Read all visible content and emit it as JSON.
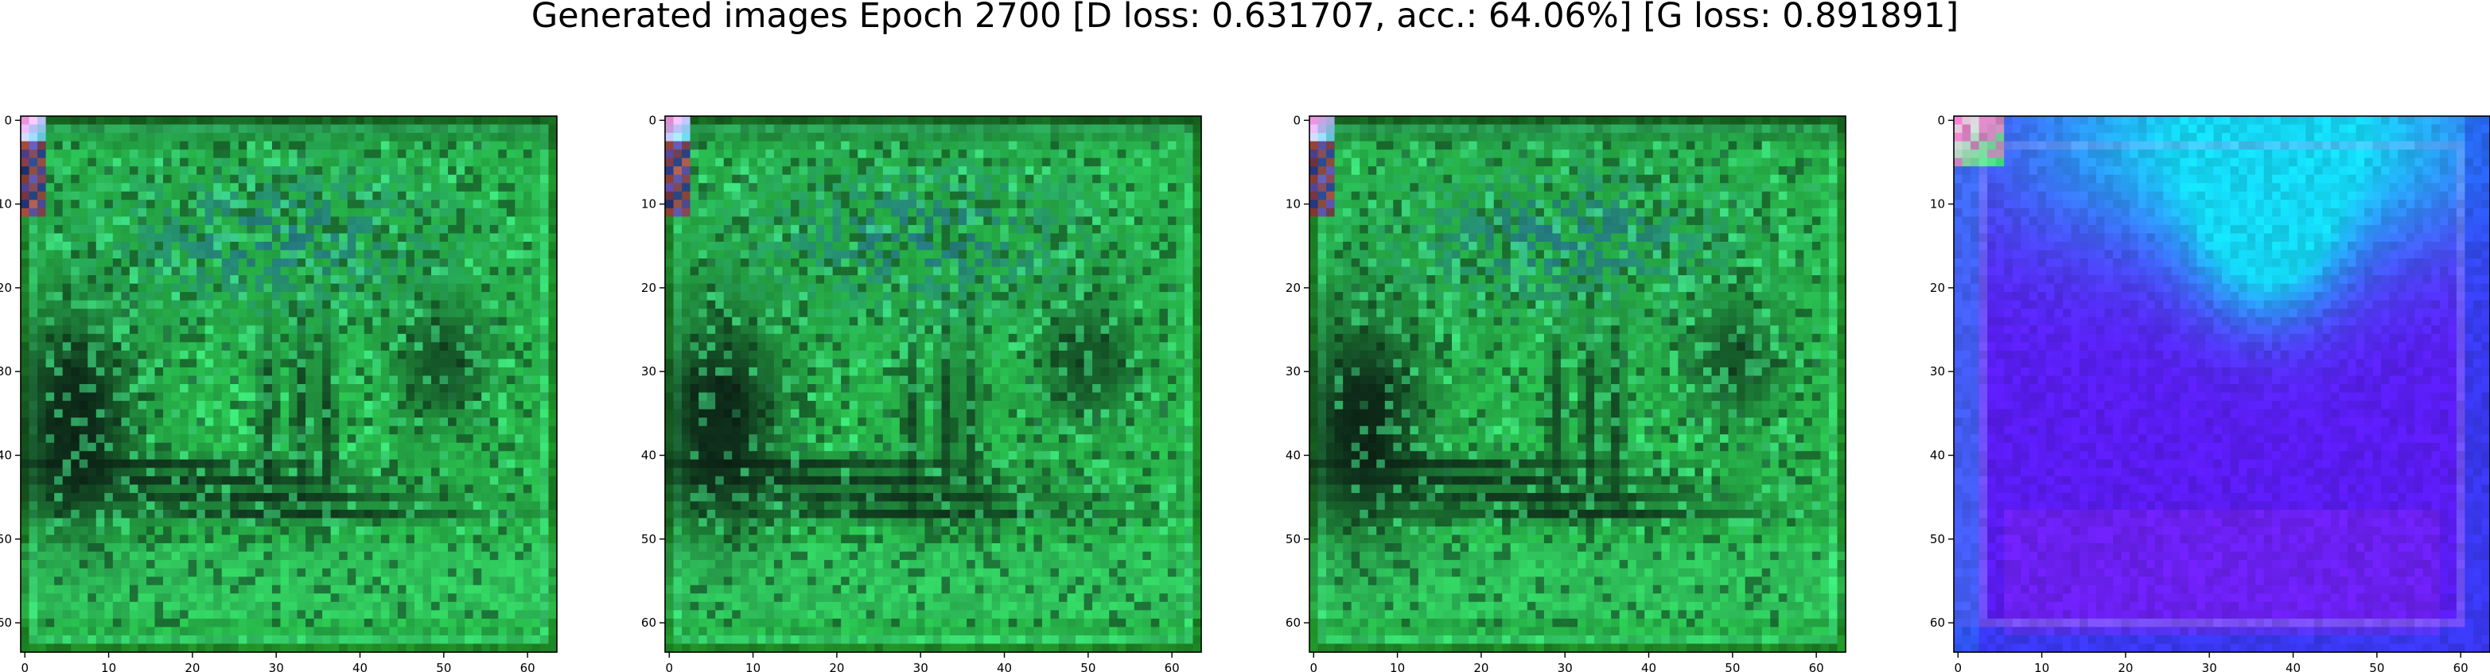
{
  "figure": {
    "title": "Generated images Epoch 2700 [D loss: 0.631707, acc.: 64.06%] [G loss: 0.891891]"
  },
  "chart_data": [
    {
      "type": "heatmap",
      "name": "image-1",
      "x_ticks": [
        "0",
        "10",
        "20",
        "30",
        "40",
        "50",
        "60"
      ],
      "y_ticks": [
        "0",
        "10",
        "20",
        "30",
        "40",
        "50",
        "60"
      ],
      "xlim": [
        -0.5,
        63.5
      ],
      "ylim": [
        63.5,
        -0.5
      ],
      "grid": false,
      "palette": {
        "border": "#1a7a1a",
        "base": "#27b34a",
        "dark": "#0b1f14",
        "light": "#44e88a",
        "blue": "#1e4d8c",
        "corner": "#ff9ff0"
      }
    },
    {
      "type": "heatmap",
      "name": "image-2",
      "x_ticks": [
        "0",
        "10",
        "20",
        "30",
        "40",
        "50",
        "60"
      ],
      "y_ticks": [
        "0",
        "10",
        "20",
        "30",
        "40",
        "50",
        "60"
      ],
      "xlim": [
        -0.5,
        63.5
      ],
      "ylim": [
        63.5,
        -0.5
      ],
      "grid": false,
      "palette": {
        "border": "#1a7a1a",
        "base": "#27b34a",
        "dark": "#0b1f14",
        "light": "#44e88a",
        "blue": "#1e4d8c",
        "corner": "#ff9ff0"
      }
    },
    {
      "type": "heatmap",
      "name": "image-3",
      "x_ticks": [
        "0",
        "10",
        "20",
        "30",
        "40",
        "50",
        "60"
      ],
      "y_ticks": [
        "0",
        "10",
        "20",
        "30",
        "40",
        "50",
        "60"
      ],
      "xlim": [
        -0.5,
        63.5
      ],
      "ylim": [
        63.5,
        -0.5
      ],
      "grid": false,
      "palette": {
        "border": "#1a7a1a",
        "base": "#27b34a",
        "dark": "#0b1f14",
        "light": "#44e88a",
        "blue": "#1e4d8c",
        "corner": "#ff9ff0"
      }
    },
    {
      "type": "heatmap",
      "name": "image-4",
      "x_ticks": [
        "0",
        "10",
        "20",
        "30",
        "40",
        "50",
        "60"
      ],
      "y_ticks": [
        "0",
        "10",
        "20",
        "30",
        "40",
        "50",
        "60"
      ],
      "xlim": [
        -0.5,
        63.5
      ],
      "ylim": [
        63.5,
        -0.5
      ],
      "grid": false,
      "palette": {
        "border": "#1f4ff0",
        "base": "#5a1cf2",
        "cyan": "#14d8f5",
        "edge": "#3a78f5",
        "corner": "#ffd0f0"
      }
    }
  ]
}
